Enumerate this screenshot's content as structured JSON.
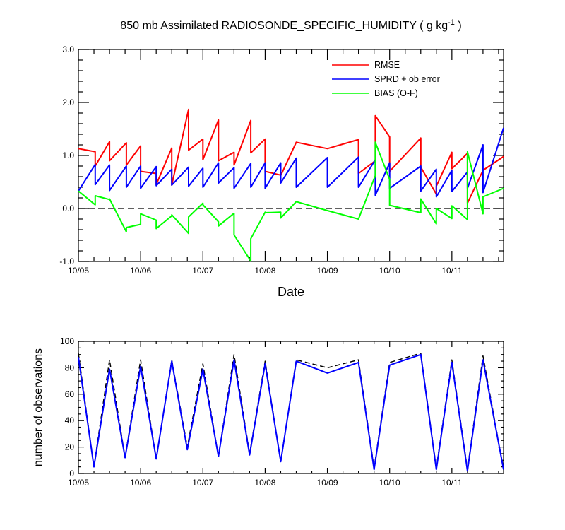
{
  "title": "850 mb Assimilated RADIOSONDE_SPECIFIC_HUMIDITY ( g kg",
  "title_sup": "-1",
  "title_end": " )",
  "colors": {
    "rmse": "#ff0000",
    "sprd": "#0000ff",
    "bias": "#00ff00",
    "obs_used": "#0000ff",
    "obs_possible": "#000000"
  },
  "chart_data": [
    {
      "type": "line",
      "title": "850 mb Assimilated RADIOSONDE_SPECIFIC_HUMIDITY ( g kg-1 )",
      "xlabel": "Date",
      "ylabel": "",
      "xlim": [
        0,
        6.83
      ],
      "ylim": [
        -1.0,
        3.0
      ],
      "x_ticks": [
        0,
        1,
        2,
        3,
        4,
        5,
        6
      ],
      "x_tick_labels": [
        "10/05",
        "10/06",
        "10/07",
        "10/08",
        "10/09",
        "10/10",
        "10/11"
      ],
      "y_ticks": [
        -1.0,
        0.0,
        1.0,
        2.0,
        3.0
      ],
      "y_tick_labels": [
        "-1.0",
        "0.0",
        "1.0",
        "2.0",
        "3.0"
      ],
      "zero_line": "dashed",
      "legend_position": "top-right",
      "series": [
        {
          "name": "RMSE",
          "color": "#ff0000",
          "x": [
            0,
            0.27,
            0.27,
            0.5,
            0.5,
            0.77,
            0.77,
            1,
            1,
            1.25,
            1.25,
            1.5,
            1.5,
            1.77,
            1.77,
            2,
            2,
            2.25,
            2.25,
            2.5,
            2.5,
            2.77,
            2.77,
            3,
            3,
            3.25,
            3.25,
            3.5,
            4,
            4.5,
            4.5,
            4.77,
            4.77,
            5,
            5,
            5.5,
            5.5,
            5.75,
            5.75,
            6,
            6,
            6.25,
            6.25,
            6.5,
            6.83
          ],
          "y": [
            1.13,
            1.07,
            0.8,
            1.26,
            0.9,
            1.24,
            0.82,
            1.18,
            0.7,
            0.66,
            0.45,
            1.14,
            0.44,
            1.87,
            1.1,
            1.31,
            0.92,
            1.67,
            0.9,
            1.06,
            0.82,
            1.66,
            1.05,
            1.31,
            0.7,
            0.63,
            0.62,
            1.25,
            1.13,
            1.3,
            0.66,
            0.9,
            1.75,
            1.35,
            0.7,
            1.33,
            0.78,
            0.27,
            0.42,
            1.06,
            0.75,
            1.04,
            0.1,
            0.72,
            0.98
          ]
        },
        {
          "name": "SPRD + ob error",
          "color": "#0000ff",
          "x": [
            0,
            0.27,
            0.27,
            0.5,
            0.5,
            0.77,
            0.77,
            1,
            1,
            1.25,
            1.25,
            1.5,
            1.5,
            1.77,
            1.77,
            2,
            2,
            2.25,
            2.25,
            2.5,
            2.5,
            2.77,
            2.77,
            3,
            3,
            3.25,
            3.25,
            3.5,
            3.5,
            4,
            4,
            4.5,
            4.5,
            4.77,
            4.77,
            5,
            5,
            5.5,
            5.5,
            5.75,
            5.75,
            6,
            6,
            6.25,
            6.25,
            6.5,
            6.5,
            6.83
          ],
          "y": [
            0.33,
            0.83,
            0.45,
            0.82,
            0.34,
            0.8,
            0.4,
            0.8,
            0.38,
            0.79,
            0.43,
            0.74,
            0.44,
            0.78,
            0.42,
            0.76,
            0.4,
            0.86,
            0.48,
            0.77,
            0.38,
            0.85,
            0.4,
            0.86,
            0.38,
            0.86,
            0.48,
            0.95,
            0.4,
            0.96,
            0.4,
            0.97,
            0.4,
            0.92,
            0.25,
            0.86,
            0.38,
            0.8,
            0.33,
            0.74,
            0.22,
            0.72,
            0.32,
            0.69,
            0.38,
            1.2,
            0.3,
            1.52
          ]
        },
        {
          "name": "BIAS (O-F)",
          "color": "#00ff00",
          "x": [
            0,
            0.27,
            0.27,
            0.5,
            0.5,
            0.77,
            0.77,
            1,
            1,
            1.25,
            1.25,
            1.5,
            1.5,
            1.77,
            1.77,
            2,
            2,
            2.25,
            2.25,
            2.5,
            2.5,
            2.77,
            2.77,
            3,
            3,
            3.25,
            3.25,
            3.5,
            4,
            4.5,
            4.77,
            4.77,
            5,
            5,
            5.5,
            5.5,
            5.75,
            5.75,
            6,
            6,
            6.25,
            6.25,
            6.5,
            6.5,
            6.83
          ],
          "y": [
            0.33,
            0.07,
            0.24,
            0.17,
            0.18,
            -0.44,
            -0.36,
            -0.3,
            -0.1,
            -0.22,
            -0.38,
            -0.14,
            -0.12,
            -0.47,
            -0.16,
            0.1,
            0.07,
            -0.25,
            -0.33,
            -0.09,
            -0.5,
            -0.99,
            -0.57,
            -0.07,
            -0.08,
            -0.07,
            -0.18,
            0.13,
            -0.04,
            -0.2,
            0.62,
            1.25,
            0.55,
            0.06,
            -0.08,
            0.18,
            -0.29,
            0.0,
            -0.19,
            0.05,
            -0.21,
            1.07,
            -0.1,
            0.22,
            0.38
          ]
        }
      ]
    },
    {
      "type": "line",
      "title": "",
      "xlabel": "",
      "ylabel": "number of observations",
      "xlim": [
        0,
        6.83
      ],
      "ylim": [
        0,
        100
      ],
      "x_ticks": [
        0,
        1,
        2,
        3,
        4,
        5,
        6
      ],
      "x_tick_labels": [
        "10/05",
        "10/06",
        "10/07",
        "10/08",
        "10/09",
        "10/10",
        "10/11"
      ],
      "y_ticks": [
        0,
        20,
        40,
        60,
        80,
        100
      ],
      "y_tick_labels": [
        "0",
        "20",
        "40",
        "60",
        "80",
        "100"
      ],
      "series": [
        {
          "style": "dashed",
          "color": "#000000",
          "x": [
            0,
            0.25,
            0.5,
            0.75,
            1,
            1.25,
            1.5,
            1.75,
            2,
            2.25,
            2.5,
            2.75,
            3,
            3.25,
            3.5,
            4,
            4.5,
            4.75,
            5,
            5.5,
            5.75,
            6,
            6.25,
            6.5,
            6.83
          ],
          "y": [
            91,
            5,
            86,
            12,
            86,
            11,
            86,
            20,
            83,
            13,
            90,
            15,
            85,
            9,
            86,
            80,
            86,
            4,
            84,
            91,
            4,
            86,
            3,
            89,
            3
          ]
        },
        {
          "style": "solid",
          "color": "#0000ff",
          "x": [
            0,
            0.25,
            0.5,
            0.75,
            1,
            1.25,
            1.5,
            1.75,
            2,
            2.25,
            2.5,
            2.75,
            3,
            3.25,
            3.5,
            4,
            4.5,
            4.75,
            5,
            5.5,
            5.75,
            6,
            6.25,
            6.5,
            6.83
          ],
          "y": [
            88,
            5,
            79,
            12,
            81,
            11,
            85,
            18,
            79,
            13,
            86,
            14,
            83,
            9,
            85,
            76,
            84,
            3,
            82,
            90,
            3,
            84,
            2,
            86,
            3
          ]
        }
      ]
    }
  ]
}
